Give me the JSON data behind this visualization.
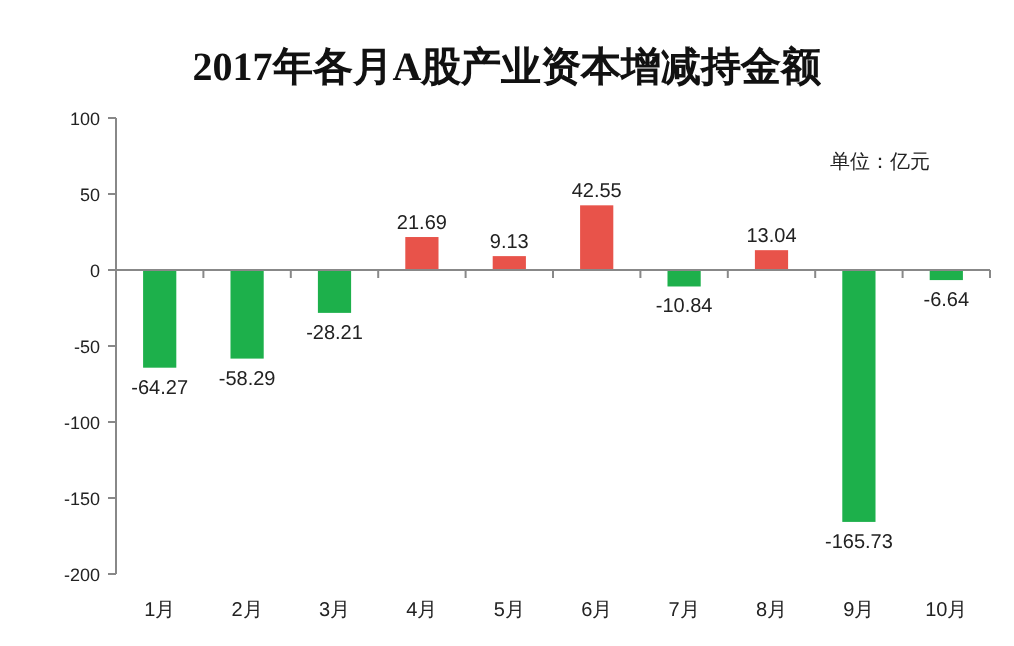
{
  "chart_data": {
    "type": "bar",
    "title": "2017年各月A股产业资本增减持金额",
    "annotations": [
      "单位：亿元"
    ],
    "categories": [
      "1月",
      "2月",
      "3月",
      "4月",
      "5月",
      "6月",
      "7月",
      "8月",
      "9月",
      "10月"
    ],
    "values": [
      -64.27,
      -58.29,
      -28.21,
      21.69,
      9.13,
      42.55,
      -10.84,
      13.04,
      -165.73,
      -6.64
    ],
    "colors": [
      "#1db04b",
      "#1db04b",
      "#1db04b",
      "#e8534a",
      "#e8534a",
      "#e8534a",
      "#1db04b",
      "#e8534a",
      "#1db04b",
      "#1db04b"
    ],
    "ylim": [
      -200,
      100
    ],
    "yticks": [
      -200,
      -150,
      -100,
      -50,
      0,
      50,
      100
    ],
    "data_labels": true
  }
}
